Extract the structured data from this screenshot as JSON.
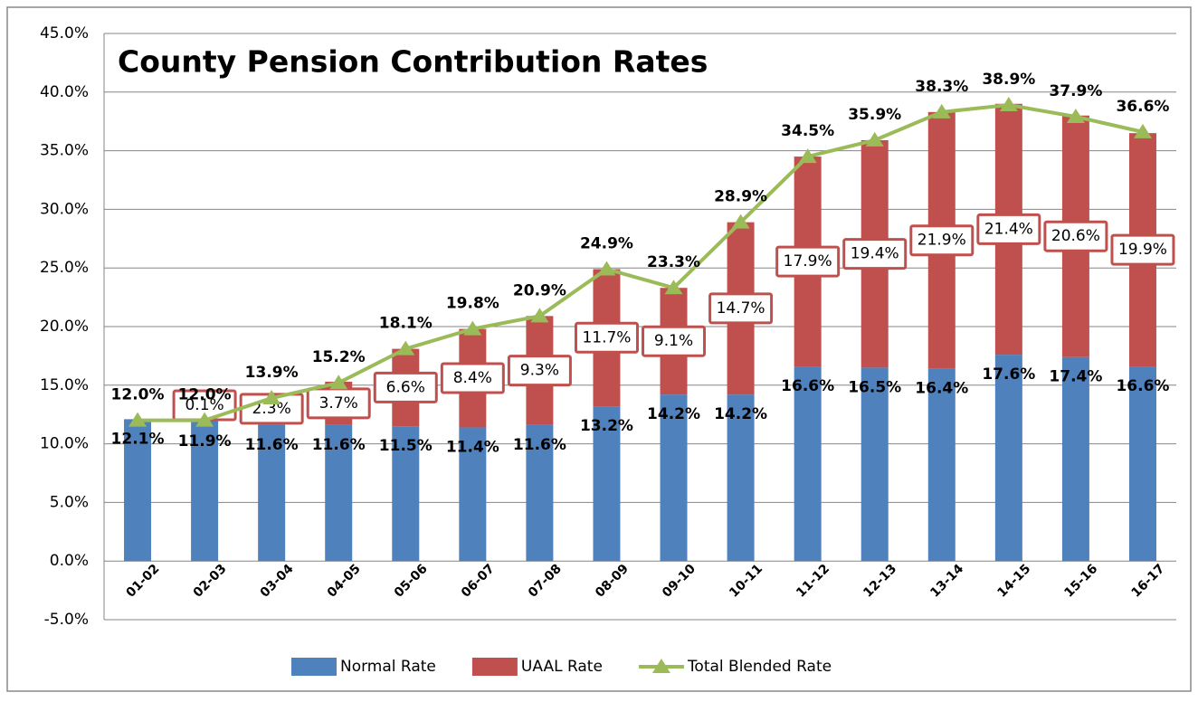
{
  "chart_data": {
    "type": "bar-line",
    "title": "County Pension Contribution Rates",
    "categories": [
      "01-02",
      "02-03",
      "03-04",
      "04-05",
      "05-06",
      "06-07",
      "07-08",
      "08-09",
      "09-10",
      "10-11",
      "11-12",
      "12-13",
      "13-14",
      "14-15",
      "15-16",
      "16-17"
    ],
    "series": [
      {
        "name": "Normal Rate",
        "type": "bar",
        "color": "#4f81bd",
        "values": [
          12.1,
          11.9,
          11.6,
          11.6,
          11.5,
          11.4,
          11.6,
          13.2,
          14.2,
          14.2,
          16.6,
          16.5,
          16.4,
          17.6,
          17.4,
          16.6
        ],
        "value_labels": [
          "12.1%",
          "11.9%",
          "11.6%",
          "11.6%",
          "11.5%",
          "11.4%",
          "11.6%",
          "13.2%",
          "14.2%",
          "14.2%",
          "16.6%",
          "16.5%",
          "16.4%",
          "17.6%",
          "17.4%",
          "16.6%"
        ]
      },
      {
        "name": "UAAL Rate",
        "type": "bar",
        "color": "#c0504d",
        "values": [
          null,
          0.1,
          2.3,
          3.7,
          6.6,
          8.4,
          9.3,
          11.7,
          9.1,
          14.7,
          17.9,
          19.4,
          21.9,
          21.4,
          20.6,
          19.9
        ],
        "value_labels": [
          null,
          "0.1%",
          "2.3%",
          "3.7%",
          "6.6%",
          "8.4%",
          "9.3%",
          "11.7%",
          "9.1%",
          "14.7%",
          "17.9%",
          "19.4%",
          "21.9%",
          "21.4%",
          "20.6%",
          "19.9%"
        ]
      },
      {
        "name": "Total Blended Rate",
        "type": "line",
        "color": "#9bbb59",
        "values": [
          12.0,
          12.0,
          13.9,
          15.2,
          18.1,
          19.8,
          20.9,
          24.9,
          23.3,
          28.9,
          34.5,
          35.9,
          38.3,
          38.9,
          37.9,
          36.6
        ],
        "value_labels": [
          "12.0%",
          "12.0%",
          "13.9%",
          "15.2%",
          "18.1%",
          "19.8%",
          "20.9%",
          "24.9%",
          "23.3%",
          "28.9%",
          "34.5%",
          "35.9%",
          "38.3%",
          "38.9%",
          "37.9%",
          "36.6%"
        ]
      }
    ],
    "ylim": [
      -5,
      45
    ],
    "yticks": [
      {
        "value": -5,
        "label": "-5.0%"
      },
      {
        "value": 0,
        "label": "0.0%"
      },
      {
        "value": 5,
        "label": "5.0%"
      },
      {
        "value": 10,
        "label": "10.0%"
      },
      {
        "value": 15,
        "label": "15.0%"
      },
      {
        "value": 20,
        "label": "20.0%"
      },
      {
        "value": 25,
        "label": "25.0%"
      },
      {
        "value": 30,
        "label": "30.0%"
      },
      {
        "value": 35,
        "label": "35.0%"
      },
      {
        "value": 40,
        "label": "40.0%"
      },
      {
        "value": 45,
        "label": "45.0%"
      }
    ],
    "grid": true,
    "legend": "bottom"
  }
}
